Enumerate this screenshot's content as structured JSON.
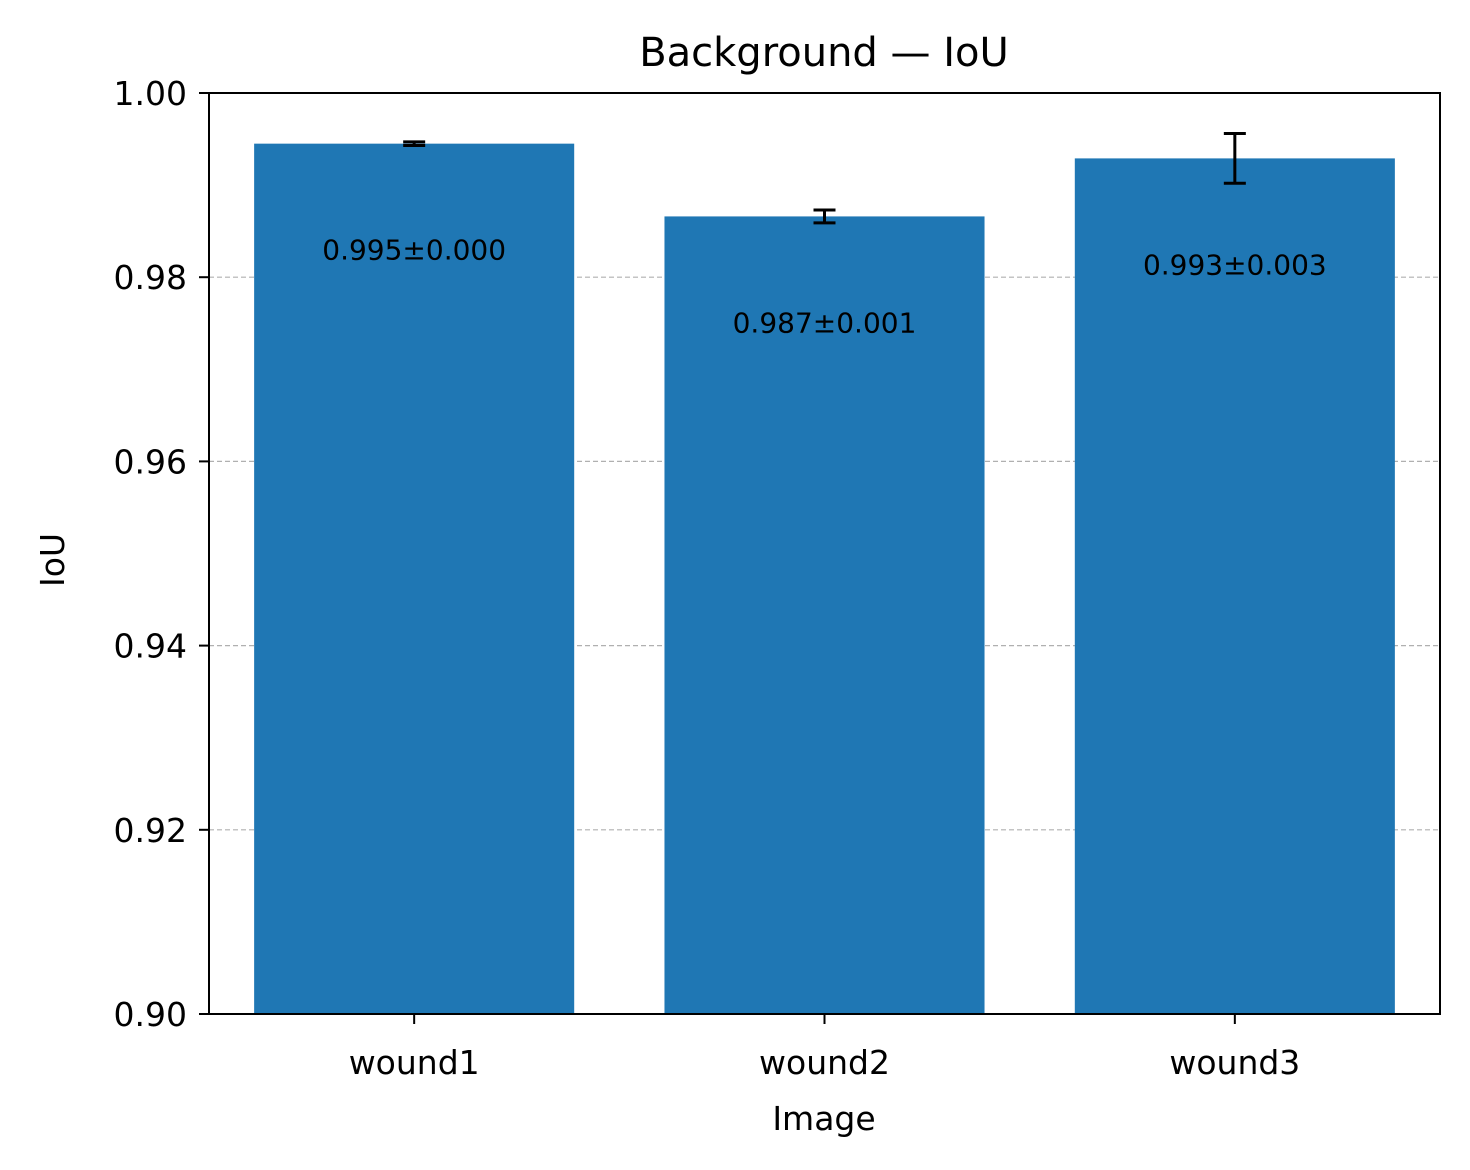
{
  "chart_data": {
    "type": "bar",
    "title": "Background — IoU",
    "xlabel": "Image",
    "ylabel": "IoU",
    "categories": [
      "wound1",
      "wound2",
      "wound3"
    ],
    "values": [
      0.9945,
      0.9866,
      0.9929
    ],
    "errors": [
      0.0002,
      0.0007,
      0.0027
    ],
    "data_labels": [
      "0.995±0.000",
      "0.987±0.001",
      "0.993±0.003"
    ],
    "ylim": [
      0.9,
      1.0
    ],
    "yticks": [
      0.9,
      0.92,
      0.94,
      0.96,
      0.98,
      1.0
    ],
    "ytick_labels": [
      "0.90",
      "0.92",
      "0.94",
      "0.96",
      "0.98",
      "1.00"
    ],
    "grid": "y-dashed",
    "bar_color": "#1f77b4"
  }
}
